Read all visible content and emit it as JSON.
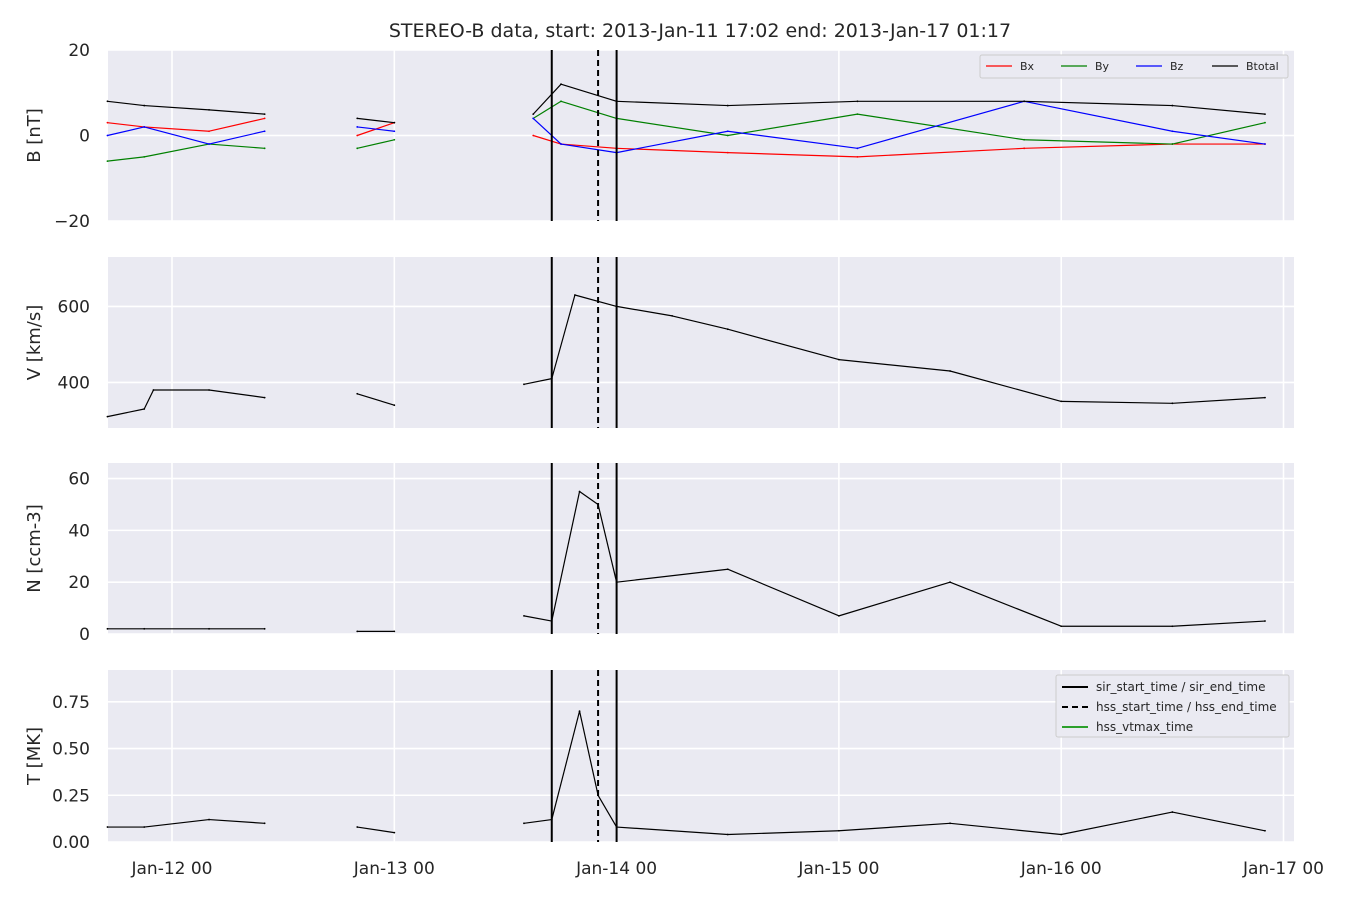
{
  "figure": {
    "title": "STEREO-B data, start: 2013-Jan-11 17:02  end: 2013-Jan-17 01:17"
  },
  "chart_data": [
    {
      "type": "line",
      "panel": "magnetic-field",
      "ylabel": "B [nT]",
      "ylim": [
        -20,
        20
      ],
      "yticks": [
        "20",
        "0",
        "−20"
      ],
      "grid": true,
      "legend_position": "top-right",
      "xticks": [
        "Jan-12 00",
        "Jan-13 00",
        "Jan-14 00",
        "Jan-15 00",
        "Jan-16 00",
        "Jan-17 00"
      ],
      "series": [
        {
          "name": "Bx",
          "color": "#ff0000",
          "x": [
            "2013-01-11 17:02",
            "2013-01-11 21:00",
            "2013-01-12 04:00",
            "2013-01-12 10:00",
            "2013-01-12 20:00",
            "2013-01-13 00:00",
            "2013-01-13 15:00",
            "2013-01-13 18:00",
            "2013-01-14 00:00",
            "2013-01-14 12:00",
            "2013-01-15 02:00",
            "2013-01-15 20:00",
            "2013-01-16 12:00",
            "2013-01-16 22:00"
          ],
          "values": [
            3,
            2,
            1,
            4,
            0,
            3,
            0,
            -2,
            -3,
            -4,
            -5,
            -3,
            -2,
            -2
          ]
        },
        {
          "name": "By",
          "color": "#008000",
          "x": [
            "2013-01-11 17:02",
            "2013-01-11 21:00",
            "2013-01-12 04:00",
            "2013-01-12 10:00",
            "2013-01-12 20:00",
            "2013-01-13 00:00",
            "2013-01-13 15:00",
            "2013-01-13 18:00",
            "2013-01-14 00:00",
            "2013-01-14 12:00",
            "2013-01-15 02:00",
            "2013-01-15 20:00",
            "2013-01-16 12:00",
            "2013-01-16 22:00"
          ],
          "values": [
            -6,
            -5,
            -2,
            -3,
            -3,
            -1,
            4,
            8,
            4,
            0,
            5,
            -1,
            -2,
            3
          ]
        },
        {
          "name": "Bz",
          "color": "#0000ff",
          "x": [
            "2013-01-11 17:02",
            "2013-01-11 21:00",
            "2013-01-12 04:00",
            "2013-01-12 10:00",
            "2013-01-12 20:00",
            "2013-01-13 00:00",
            "2013-01-13 15:00",
            "2013-01-13 18:00",
            "2013-01-14 00:00",
            "2013-01-14 12:00",
            "2013-01-15 02:00",
            "2013-01-15 20:00",
            "2013-01-16 12:00",
            "2013-01-16 22:00"
          ],
          "values": [
            0,
            2,
            -2,
            1,
            2,
            1,
            4,
            -2,
            -4,
            1,
            -3,
            8,
            1,
            -2
          ]
        },
        {
          "name": "Btotal",
          "color": "#000000",
          "x": [
            "2013-01-11 17:02",
            "2013-01-11 21:00",
            "2013-01-12 04:00",
            "2013-01-12 10:00",
            "2013-01-12 20:00",
            "2013-01-13 00:00",
            "2013-01-13 15:00",
            "2013-01-13 18:00",
            "2013-01-14 00:00",
            "2013-01-14 12:00",
            "2013-01-15 02:00",
            "2013-01-15 20:00",
            "2013-01-16 12:00",
            "2013-01-16 22:00"
          ],
          "values": [
            8,
            7,
            6,
            5,
            4,
            3,
            5,
            12,
            8,
            7,
            8,
            8,
            7,
            5
          ]
        }
      ],
      "events": [
        {
          "name": "sir_start_time / sir_end_time",
          "style": "solid",
          "x": [
            "2013-01-13 17:00",
            "2013-01-14 00:00"
          ]
        },
        {
          "name": "hss_start_time / hss_end_time",
          "style": "dashed",
          "x": [
            "2013-01-13 22:00"
          ]
        }
      ]
    },
    {
      "type": "line",
      "panel": "speed",
      "ylabel": "V [km/s]",
      "ylim": [
        280,
        730
      ],
      "yticks": [
        "600",
        "400"
      ],
      "grid": true,
      "series": [
        {
          "name": "",
          "color": "#000000",
          "x": [
            "2013-01-11 17:02",
            "2013-01-11 21:00",
            "2013-01-11 22:00",
            "2013-01-12 04:00",
            "2013-01-12 10:00",
            "2013-01-12 20:00",
            "2013-01-13 00:00",
            "2013-01-13 14:00",
            "2013-01-13 17:00",
            "2013-01-13 19:30",
            "2013-01-14 00:00",
            "2013-01-14 06:00",
            "2013-01-14 12:00",
            "2013-01-15 00:00",
            "2013-01-15 12:00",
            "2013-01-16 00:00",
            "2013-01-16 12:00",
            "2013-01-16 22:00"
          ],
          "values": [
            310,
            330,
            380,
            380,
            360,
            370,
            340,
            395,
            410,
            630,
            600,
            575,
            540,
            460,
            430,
            350,
            345,
            360
          ]
        }
      ]
    },
    {
      "type": "line",
      "panel": "density",
      "ylabel": "N [ccm-3]",
      "ylim": [
        0,
        66
      ],
      "yticks": [
        "60",
        "40",
        "20",
        "0"
      ],
      "grid": true,
      "series": [
        {
          "name": "",
          "color": "#000000",
          "x": [
            "2013-01-11 17:02",
            "2013-01-11 21:00",
            "2013-01-12 04:00",
            "2013-01-12 10:00",
            "2013-01-12 20:00",
            "2013-01-13 00:00",
            "2013-01-13 14:00",
            "2013-01-13 17:00",
            "2013-01-13 20:00",
            "2013-01-13 22:00",
            "2013-01-14 00:00",
            "2013-01-14 12:00",
            "2013-01-15 00:00",
            "2013-01-15 12:00",
            "2013-01-16 00:00",
            "2013-01-16 12:00",
            "2013-01-16 22:00"
          ],
          "values": [
            2,
            2,
            2,
            2,
            1,
            1,
            7,
            5,
            55,
            50,
            20,
            25,
            7,
            20,
            3,
            3,
            5
          ]
        }
      ]
    },
    {
      "type": "line",
      "panel": "temperature",
      "ylabel": "T [MK]",
      "ylim": [
        0,
        0.92
      ],
      "yticks": [
        "0.75",
        "0.50",
        "0.25",
        "0.00"
      ],
      "grid": true,
      "legend_position": "top-right",
      "series": [
        {
          "name": "",
          "color": "#000000",
          "x": [
            "2013-01-11 17:02",
            "2013-01-11 21:00",
            "2013-01-12 04:00",
            "2013-01-12 10:00",
            "2013-01-12 20:00",
            "2013-01-13 00:00",
            "2013-01-13 14:00",
            "2013-01-13 17:00",
            "2013-01-13 20:00",
            "2013-01-13 22:00",
            "2013-01-14 00:00",
            "2013-01-14 12:00",
            "2013-01-15 00:00",
            "2013-01-15 12:00",
            "2013-01-16 00:00",
            "2013-01-16 12:00",
            "2013-01-16 22:00"
          ],
          "values": [
            0.08,
            0.08,
            0.12,
            0.1,
            0.08,
            0.05,
            0.1,
            0.12,
            0.7,
            0.25,
            0.08,
            0.04,
            0.06,
            0.1,
            0.04,
            0.16,
            0.06
          ]
        }
      ],
      "legend_entries": [
        {
          "name": "sir_start_time / sir_end_time",
          "style": "solid",
          "color": "#000000"
        },
        {
          "name": "hss_start_time / hss_end_time",
          "style": "dashed",
          "color": "#000000"
        },
        {
          "name": "hss_vtmax_time",
          "style": "solid",
          "color": "#2ca02c"
        }
      ]
    }
  ]
}
